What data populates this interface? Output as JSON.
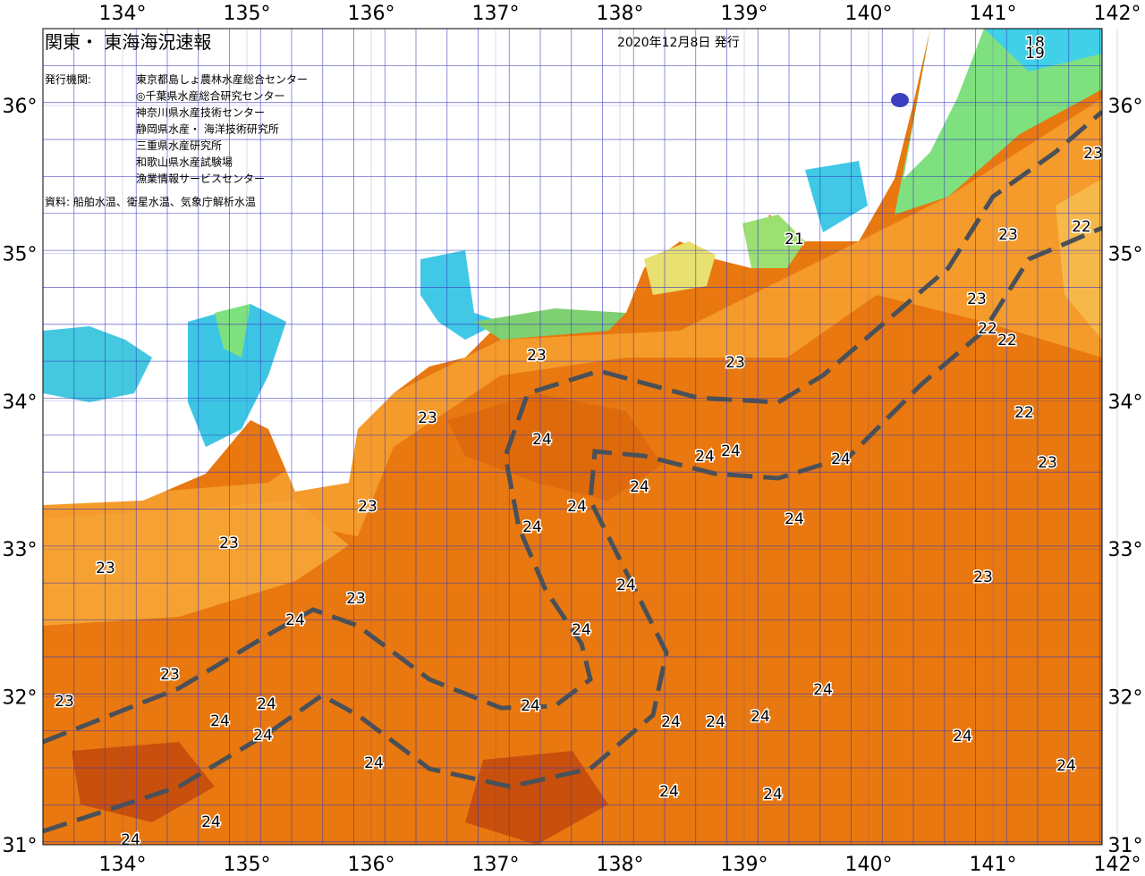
{
  "header": {
    "title": "関東・ 東海海況速報",
    "issued": "2020年12月8日 発行"
  },
  "agencies": {
    "heading": "発行機関:",
    "list": [
      "東京都島しょ農林水産総合センター",
      "◎千葉県水産総合研究センター",
      "神奈川県水産技術センター",
      "静岡県水産・ 海洋技術研究所",
      "三重県水産研究所",
      "和歌山県水産試験場",
      "漁業情報サービスセンター"
    ]
  },
  "source": "資料: 船舶水温、衛星水温、気象庁解析水温",
  "longitude_ticks": [
    {
      "value": 134,
      "label": "134°"
    },
    {
      "value": 135,
      "label": "135°"
    },
    {
      "value": 136,
      "label": "136°"
    },
    {
      "value": 137,
      "label": "137°"
    },
    {
      "value": 138,
      "label": "138°"
    },
    {
      "value": 139,
      "label": "139°"
    },
    {
      "value": 140,
      "label": "140°"
    },
    {
      "value": 141,
      "label": "141°"
    },
    {
      "value": 142,
      "label": "142°"
    }
  ],
  "latitude_ticks": [
    {
      "value": 36,
      "label": "36°"
    },
    {
      "value": 35,
      "label": "35°"
    },
    {
      "value": 34,
      "label": "34°"
    },
    {
      "value": 33,
      "label": "33°"
    },
    {
      "value": 32,
      "label": "32°"
    },
    {
      "value": 31,
      "label": "31°"
    }
  ],
  "isotherm_labels": [
    "23",
    "23",
    "24",
    "24",
    "24",
    "24",
    "23",
    "23",
    "23",
    "23",
    "24",
    "24",
    "24",
    "23",
    "23",
    "24",
    "24",
    "24",
    "24",
    "24",
    "24",
    "24",
    "24",
    "24",
    "24",
    "24",
    "24",
    "24",
    "24",
    "24",
    "23",
    "24",
    "24",
    "24",
    "24",
    "23",
    "23",
    "22",
    "22",
    "22",
    "23",
    "23",
    "22",
    "23",
    "21",
    "18",
    "19"
  ]
}
